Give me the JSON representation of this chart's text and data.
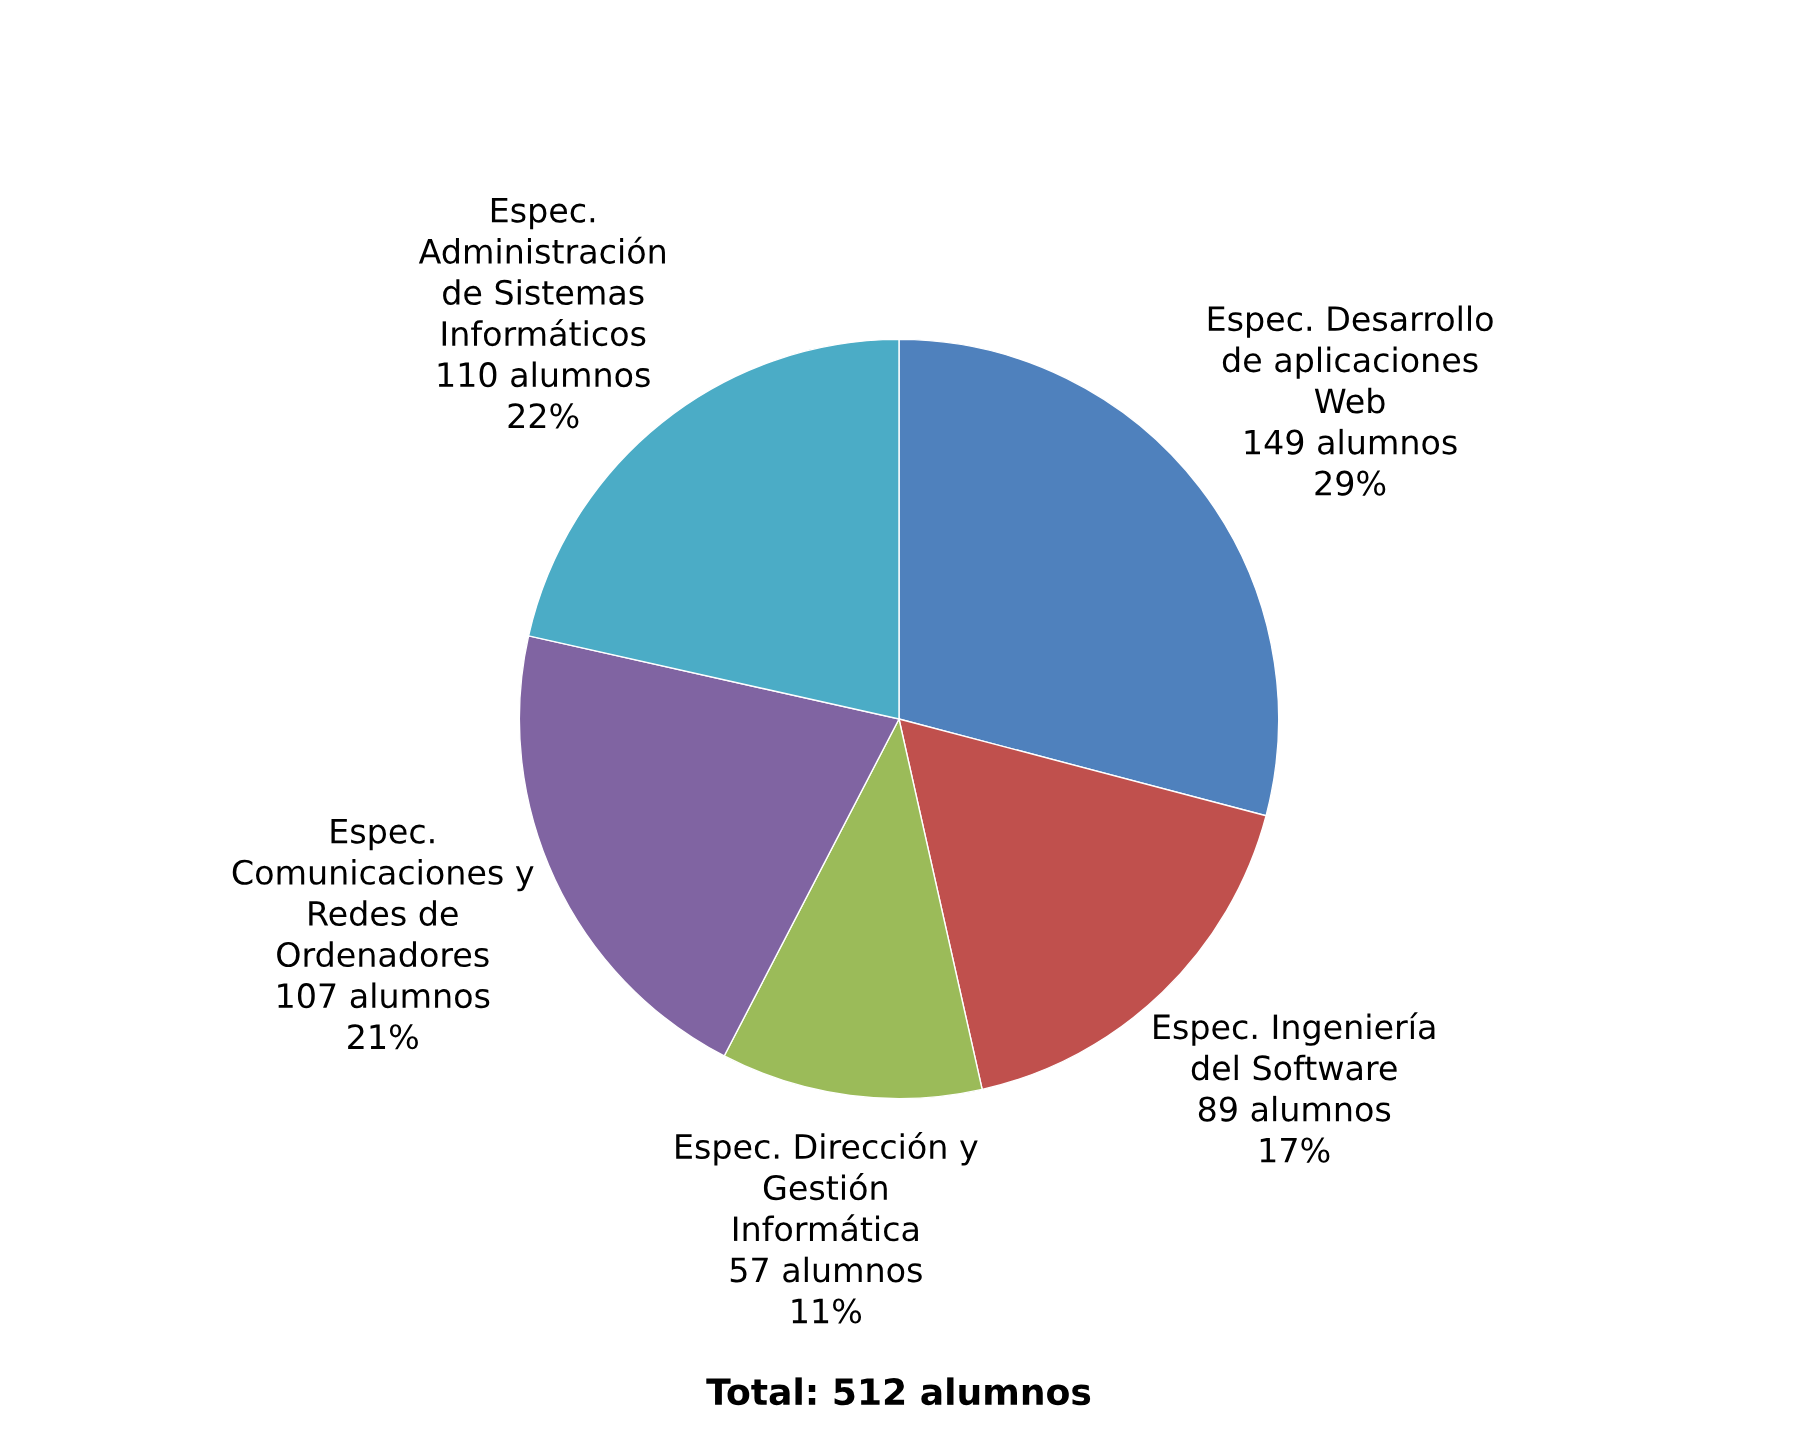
{
  "chart_data": {
    "type": "pie",
    "categories": [
      "Espec. Desarrollo\nde aplicaciones\nWeb",
      "Espec. Ingeniería\ndel Software",
      "Espec. Dirección y\nGestión\nInformática",
      "Espec.\nComunicaciones y\nRedes de\nOrdenadores",
      "Espec.\nAdministración\nde Sistemas\nInformáticos"
    ],
    "values": [
      149,
      89,
      57,
      107,
      110
    ],
    "value_labels": [
      "149 alumnos\n29%",
      "89 alumnos\n17%",
      "57 alumnos\n11%",
      "107 alumnos\n21%",
      "110 alumnos\n22%"
    ],
    "colors": [
      "#4f81bd",
      "#c0504d",
      "#9bbb59",
      "#8064a2",
      "#4bacc6"
    ],
    "annotations": [
      "Total: 512 alumnos"
    ],
    "legend": false
  }
}
